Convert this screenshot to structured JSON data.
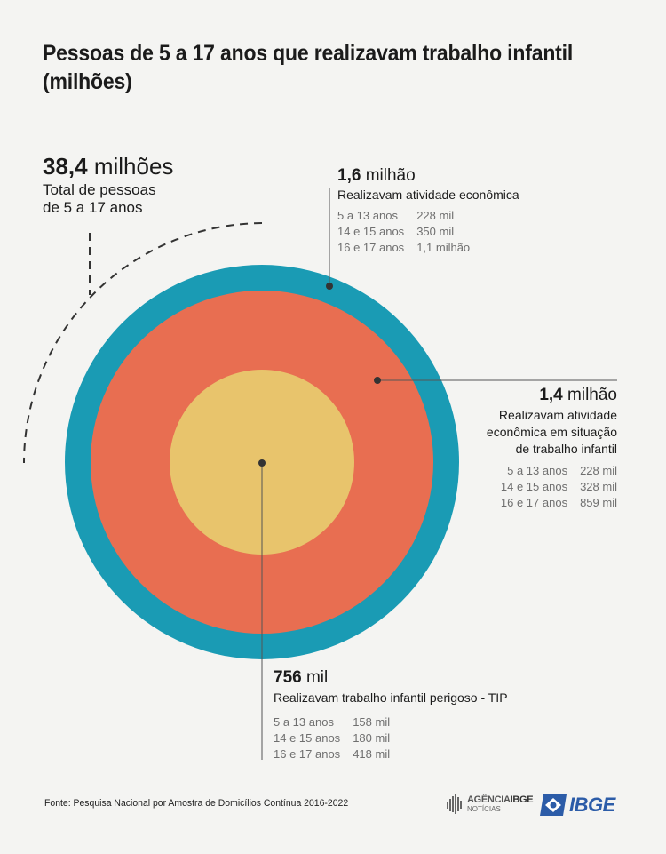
{
  "title": "Pessoas de 5 a 17 anos que realizavam trabalho infantil (milhões)",
  "total": {
    "value": "38,4",
    "unit": "milhões",
    "line1": "Total de pessoas",
    "line2": "de 5 a 17 anos"
  },
  "outer": {
    "value": "1,6",
    "unit": "milhão",
    "label": "Realizavam atividade econômica",
    "rows": [
      {
        "age": "5 a 13 anos",
        "val": "228 mil"
      },
      {
        "age": "14 e 15 anos",
        "val": "350 mil"
      },
      {
        "age": "16 e 17 anos",
        "val": "1,1 milhão"
      }
    ]
  },
  "middle": {
    "value": "1,4",
    "unit": "milhão",
    "label1": "Realizavam atividade",
    "label2": "econômica em situação",
    "label3": "de trabalho infantil",
    "rows": [
      {
        "age": "5 a 13 anos",
        "val": "228 mil"
      },
      {
        "age": "14 e 15 anos",
        "val": "328 mil"
      },
      {
        "age": "16 e 17 anos",
        "val": "859 mil"
      }
    ]
  },
  "inner": {
    "value": "756",
    "unit": "mil",
    "label": "Realizavam trabalho infantil perigoso - TIP",
    "rows": [
      {
        "age": "5 a 13 anos",
        "val": "158 mil"
      },
      {
        "age": "14 e 15 anos",
        "val": "180 mil"
      },
      {
        "age": "16 e 17 anos",
        "val": "418 mil"
      }
    ]
  },
  "colors": {
    "outer": "#1a9bb4",
    "middle": "#e86e51",
    "inner": "#e8c46c"
  },
  "footer": "Fonte: Pesquisa Nacional por Amostra de Domicílios Contínua 2016-2022",
  "logo_agencia": "AGÊNCIA",
  "logo_agencia_ibge": "IBGE",
  "logo_noticias": "NOTÍCIAS",
  "logo_ibge": "IBGE"
}
